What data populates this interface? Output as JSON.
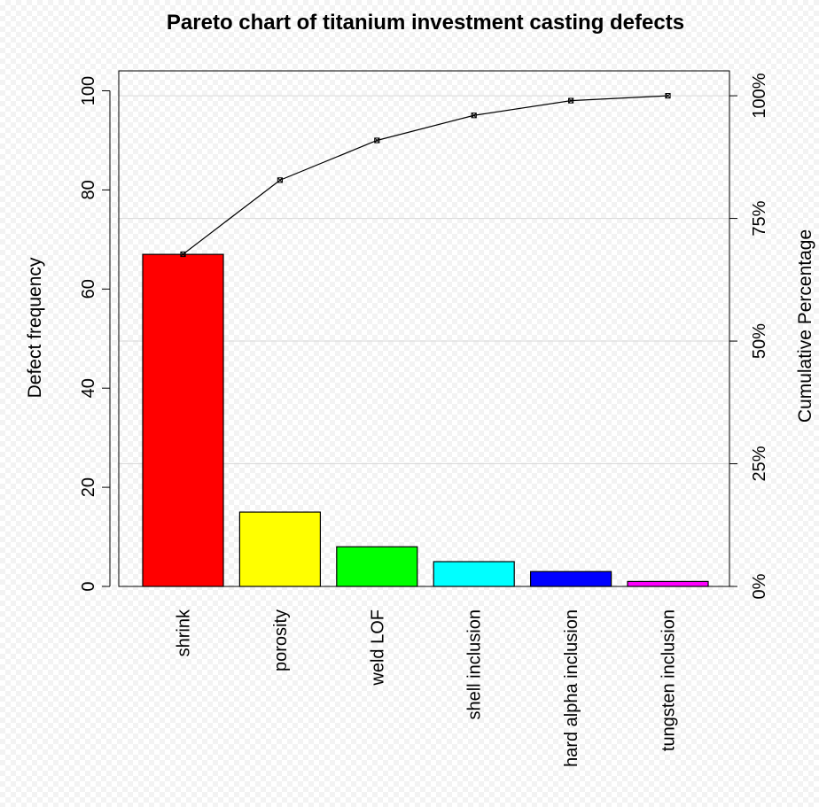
{
  "chart_data": {
    "type": "bar",
    "title": "Pareto chart of titanium investment casting defects",
    "ylabel": "Defect frequency",
    "ylabel_right": "Cumulative Percentage",
    "categories": [
      "shrink",
      "porosity",
      "weld LOF",
      "shell inclusion",
      "hard alpha inclusion",
      "tungsten inclusion"
    ],
    "values": [
      67,
      15,
      8,
      5,
      3,
      1
    ],
    "bar_colors": [
      "#ff0000",
      "#ffff00",
      "#00ff00",
      "#00ffff",
      "#0000ff",
      "#ff00ff"
    ],
    "cumulative_percent": [
      67.7,
      82.8,
      90.9,
      96.0,
      99.0,
      100.0
    ],
    "ylim": [
      0,
      99
    ],
    "y_ticks": [
      0,
      20,
      40,
      60,
      80,
      100
    ],
    "y_tick_labels": [
      "0",
      "20",
      "40",
      "60",
      "80",
      "100"
    ],
    "y2_ticks_percent": [
      0,
      25,
      50,
      75,
      100
    ],
    "y2_tick_labels": [
      "0%",
      "25%",
      "50%",
      "75%",
      "100%"
    ],
    "grid": "horizontal at cumulative percentage ticks",
    "line_color": "#000000"
  }
}
